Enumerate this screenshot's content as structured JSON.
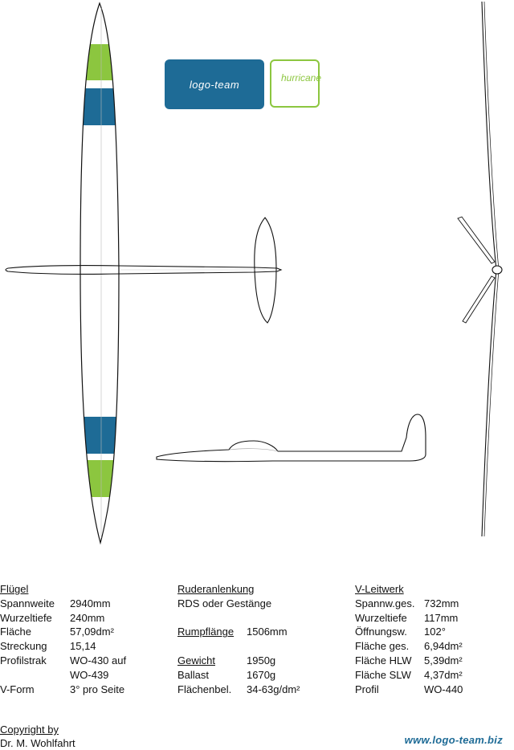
{
  "logos": {
    "team": "logo-team",
    "model": "hurricane",
    "website": "www.logo-team.biz",
    "brand_blue": "#1e6b96",
    "brand_green": "#8cc63f"
  },
  "wing": {
    "title": "Flügel",
    "rows": [
      {
        "label": "Spannweite",
        "value": "2940mm"
      },
      {
        "label": "Wurzeltiefe",
        "value": "240mm"
      },
      {
        "label": "Fläche",
        "value": "57,09dm²"
      },
      {
        "label": "Streckung",
        "value": "15,14"
      },
      {
        "label": "Profilstrak",
        "value": "WO-430 auf"
      },
      {
        "label": "",
        "value": "WO-439"
      },
      {
        "label": "V-Form",
        "value": "3° pro Seite"
      }
    ]
  },
  "middle": {
    "ruder_title": "Ruderanlenkung",
    "ruder_value": "RDS oder Gestänge",
    "rumpf_label": "Rumpflänge",
    "rumpf_value": "1506mm",
    "weight_title": "Gewicht",
    "weight_value": "1950g",
    "ballast_label": "Ballast",
    "ballast_value": "1670g",
    "load_label": "Flächenbel.",
    "load_value": "34-63g/dm²"
  },
  "tail": {
    "title": "V-Leitwerk",
    "rows": [
      {
        "label": "Spannw.ges.",
        "value": "732mm"
      },
      {
        "label": "Wurzeltiefe",
        "value": "117mm"
      },
      {
        "label": "Öffnungsw.",
        "value": "102°"
      },
      {
        "label": "Fläche ges.",
        "value": "6,94dm²"
      },
      {
        "label": "Fläche HLW",
        "value": "5,39dm²"
      },
      {
        "label": "Fläche SLW",
        "value": "4,37dm²"
      },
      {
        "label": "Profil",
        "value": "WO-440"
      }
    ]
  },
  "copyright": {
    "title": "Copyright by",
    "author": "Dr. M. Wohlfahrt"
  }
}
